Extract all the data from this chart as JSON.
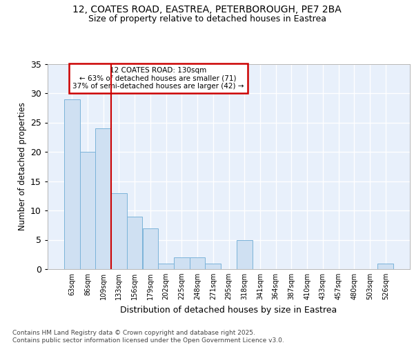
{
  "title_line1": "12, COATES ROAD, EASTREA, PETERBOROUGH, PE7 2BA",
  "title_line2": "Size of property relative to detached houses in Eastrea",
  "xlabel": "Distribution of detached houses by size in Eastrea",
  "ylabel": "Number of detached properties",
  "footer": "Contains HM Land Registry data © Crown copyright and database right 2025.\nContains public sector information licensed under the Open Government Licence v3.0.",
  "categories": [
    "63sqm",
    "86sqm",
    "109sqm",
    "133sqm",
    "156sqm",
    "179sqm",
    "202sqm",
    "225sqm",
    "248sqm",
    "271sqm",
    "295sqm",
    "318sqm",
    "341sqm",
    "364sqm",
    "387sqm",
    "410sqm",
    "433sqm",
    "457sqm",
    "480sqm",
    "503sqm",
    "526sqm"
  ],
  "values": [
    29,
    20,
    24,
    13,
    9,
    7,
    1,
    2,
    2,
    1,
    0,
    5,
    0,
    0,
    0,
    0,
    0,
    0,
    0,
    0,
    1
  ],
  "bar_color": "#cfe0f2",
  "bar_edge_color": "#7ab3d9",
  "background_color": "#ffffff",
  "plot_bg_color": "#e8f0fb",
  "grid_color": "#ffffff",
  "vline_color": "#cc0000",
  "annotation_text": "12 COATES ROAD: 130sqm\n← 63% of detached houses are smaller (71)\n37% of semi-detached houses are larger (42) →",
  "annotation_box_edge_color": "#cc0000",
  "ylim": [
    0,
    35
  ],
  "yticks": [
    0,
    5,
    10,
    15,
    20,
    25,
    30,
    35
  ],
  "vline_index": 3
}
